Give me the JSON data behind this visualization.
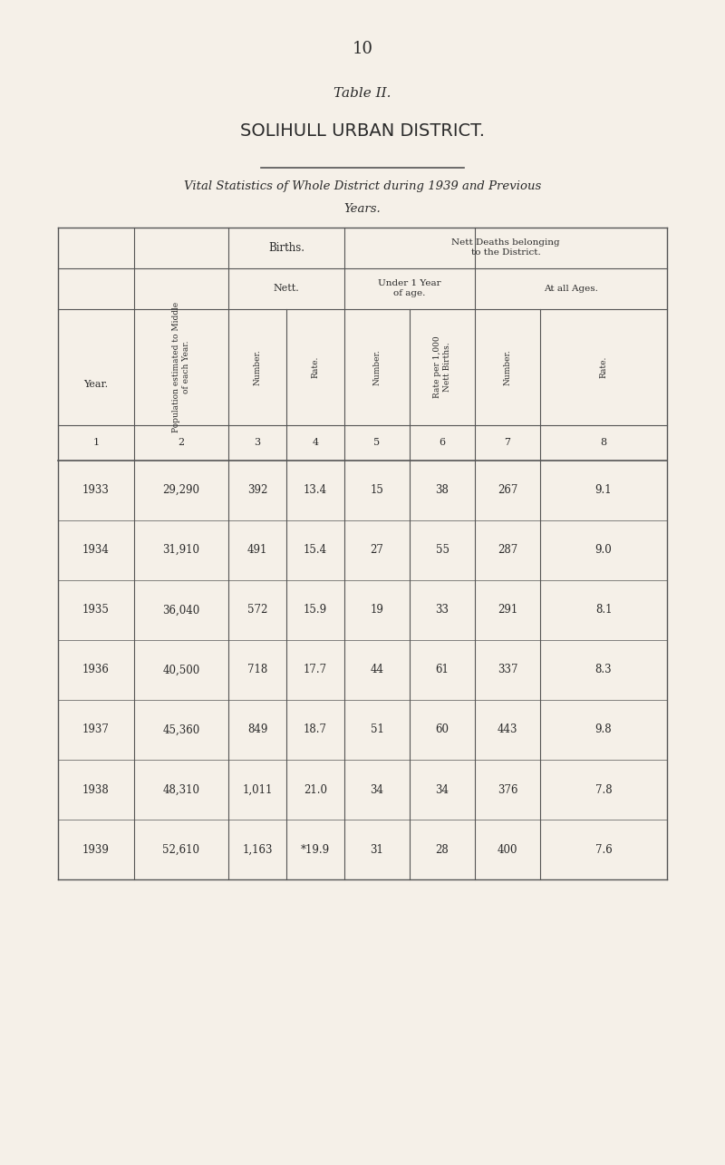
{
  "page_number": "10",
  "table_label": "Table II.",
  "district_title": "SOLIHULL URBAN DISTRICT.",
  "subtitle_line1": "Vital Statistics of Whole District during 1939 and Previous",
  "subtitle_line2": "Years.",
  "col_header_rotated_2": "Population estimated to Middle\nof each Year.",
  "col_header_rotated_3": "Number.",
  "col_header_rotated_4": "Rate.",
  "col_header_rotated_5": "Number.",
  "col_header_rotated_6": "Rate per 1,000\nNett Births.",
  "col_header_rotated_7": "Number.",
  "col_header_rotated_8": "Rate.",
  "col_numbers": [
    "1",
    "2",
    "3",
    "4",
    "5",
    "6",
    "7",
    "8"
  ],
  "year_label": "Year.",
  "rows": [
    {
      "year": "1933",
      "pop": "29,290",
      "births_num": "392",
      "births_rate": "13.4",
      "under1_num": "15",
      "under1_rate": "38",
      "allages_num": "267",
      "allages_rate": "9.1"
    },
    {
      "year": "1934",
      "pop": "31,910",
      "births_num": "491",
      "births_rate": "15.4",
      "under1_num": "27",
      "under1_rate": "55",
      "allages_num": "287",
      "allages_rate": "9.0"
    },
    {
      "year": "1935",
      "pop": "36,040",
      "births_num": "572",
      "births_rate": "15.9",
      "under1_num": "19",
      "under1_rate": "33",
      "allages_num": "291",
      "allages_rate": "8.1"
    },
    {
      "year": "1936",
      "pop": "40,500",
      "births_num": "718",
      "births_rate": "17.7",
      "under1_num": "44",
      "under1_rate": "61",
      "allages_num": "337",
      "allages_rate": "8.3"
    },
    {
      "year": "1937",
      "pop": "45,360",
      "births_num": "849",
      "births_rate": "18.7",
      "under1_num": "51",
      "under1_rate": "60",
      "allages_num": "443",
      "allages_rate": "9.8"
    },
    {
      "year": "1938",
      "pop": "48,310",
      "births_num": "1,011",
      "births_rate": "21.0",
      "under1_num": "34",
      "under1_rate": "34",
      "allages_num": "376",
      "allages_rate": "7.8"
    },
    {
      "year": "1939",
      "pop": "52,610",
      "births_num": "1,163",
      "births_rate": "*19.9",
      "under1_num": "31",
      "under1_rate": "28",
      "allages_num": "400",
      "allages_rate": "7.6"
    }
  ],
  "bg_color": "#f5f0e8",
  "text_color": "#2a2a2a",
  "line_color": "#555555"
}
